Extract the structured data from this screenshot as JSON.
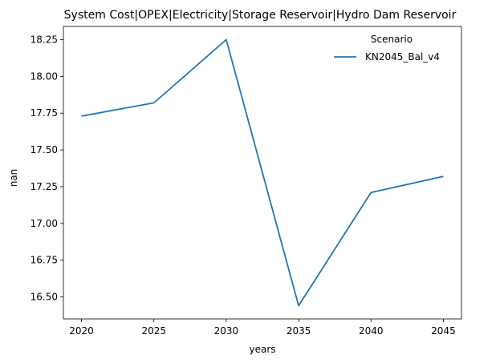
{
  "chart_data": {
    "type": "line",
    "title": "System Cost|OPEX|Electricity|Storage Reservoir|Hydro Dam Reservoir",
    "xlabel": "years",
    "ylabel": "nan",
    "x": [
      2020,
      2025,
      2030,
      2035,
      2040,
      2045
    ],
    "xticks": [
      "2020",
      "2025",
      "2030",
      "2035",
      "2040",
      "2045"
    ],
    "yticks": [
      "16.50",
      "16.75",
      "17.00",
      "17.25",
      "17.50",
      "17.75",
      "18.00",
      "18.25"
    ],
    "xlim": [
      2018.75,
      2046.25
    ],
    "ylim": [
      16.35,
      18.34
    ],
    "grid": false,
    "legend": {
      "title": "Scenario",
      "placement": "top-right"
    },
    "series": [
      {
        "name": "KN2045_Bal_v4",
        "color": "#1f77b4",
        "values": [
          17.73,
          17.82,
          18.25,
          16.44,
          17.21,
          17.32
        ]
      }
    ]
  }
}
